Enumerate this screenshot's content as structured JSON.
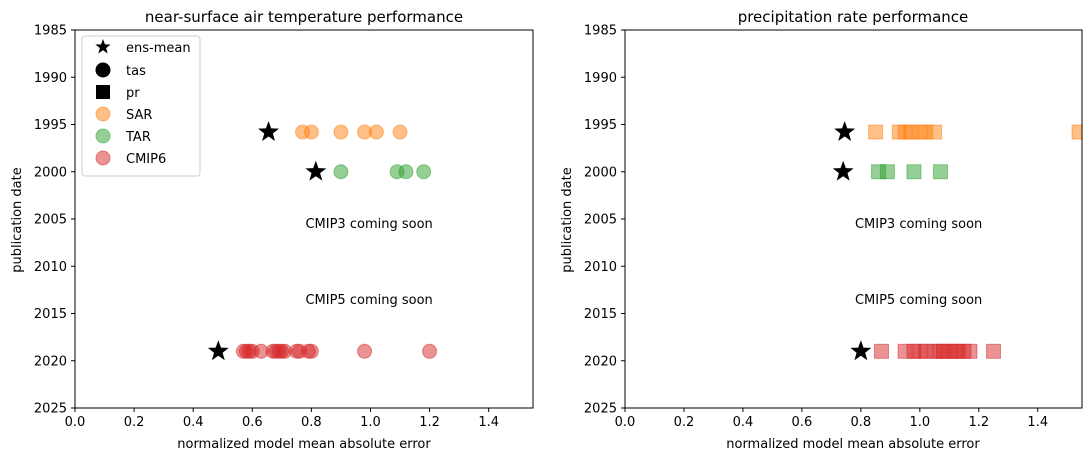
{
  "colors": {
    "SAR": "#ff7f0e",
    "TAR": "#2ca02c",
    "CMIP6": "#d62728",
    "ens_mean": "#000000"
  },
  "chart_data": [
    {
      "type": "scatter",
      "title": "near-surface air temperature performance",
      "xlabel": "normalized model mean absolute error",
      "ylabel": "publication date",
      "xlim": [
        0,
        1.55
      ],
      "ylim": [
        2025,
        1985
      ],
      "x_ticks": [
        "0.0",
        "0.2",
        "0.4",
        "0.6",
        "0.8",
        "1.0",
        "1.2",
        "1.4"
      ],
      "y_ticks": [
        "1985",
        "1990",
        "1995",
        "2000",
        "2005",
        "2010",
        "2015",
        "2020",
        "2025"
      ],
      "marker": "circle",
      "legend": {
        "position": "top-left",
        "entries": [
          {
            "label": "ens-mean",
            "marker": "star",
            "color": "#000000"
          },
          {
            "label": "tas",
            "marker": "circle",
            "color": "#000000"
          },
          {
            "label": "pr",
            "marker": "square",
            "color": "#000000"
          },
          {
            "label": "SAR",
            "marker": "circle",
            "color": "#ff7f0e",
            "alpha": 0.5
          },
          {
            "label": "TAR",
            "marker": "circle",
            "color": "#2ca02c",
            "alpha": 0.5
          },
          {
            "label": "CMIP6",
            "marker": "circle",
            "color": "#d62728",
            "alpha": 0.5
          }
        ]
      },
      "series": [
        {
          "name": "SAR",
          "y": 1995.8,
          "x": [
            0.77,
            0.8,
            0.9,
            0.98,
            1.02,
            1.1
          ]
        },
        {
          "name": "TAR",
          "y": 2000.0,
          "x": [
            0.9,
            1.09,
            1.12,
            1.18
          ]
        },
        {
          "name": "CMIP6",
          "y": 2019.0,
          "x": [
            0.57,
            0.58,
            0.59,
            0.6,
            0.63,
            0.67,
            0.68,
            0.69,
            0.7,
            0.71,
            0.75,
            0.76,
            0.79,
            0.8,
            0.98,
            1.2
          ]
        }
      ],
      "ens_mean": [
        {
          "x": 0.655,
          "y": 1995.8
        },
        {
          "x": 0.815,
          "y": 2000.0
        },
        {
          "x": 0.485,
          "y": 2019.0
        }
      ],
      "annotations": [
        {
          "text": "CMIP3 coming soon",
          "x": 0.78,
          "y": 2005.5
        },
        {
          "text": "CMIP5 coming soon",
          "x": 0.78,
          "y": 2013.5
        }
      ]
    },
    {
      "type": "scatter",
      "title": "precipitation rate performance",
      "xlabel": "normalized model mean absolute error",
      "ylabel": "publication date",
      "xlim": [
        0,
        1.55
      ],
      "ylim": [
        2025,
        1985
      ],
      "x_ticks": [
        "0.0",
        "0.2",
        "0.4",
        "0.6",
        "0.8",
        "1.0",
        "1.2",
        "1.4"
      ],
      "y_ticks": [
        "1985",
        "1990",
        "1995",
        "2000",
        "2005",
        "2010",
        "2015",
        "2020",
        "2025"
      ],
      "marker": "square",
      "series": [
        {
          "name": "SAR",
          "y": 1995.8,
          "x": [
            0.85,
            0.93,
            0.95,
            0.97,
            1.0,
            1.02,
            1.05,
            1.54
          ]
        },
        {
          "name": "TAR",
          "y": 2000.0,
          "x": [
            0.86,
            0.89,
            0.98,
            1.07
          ]
        },
        {
          "name": "CMIP6",
          "y": 2019.0,
          "x": [
            0.87,
            0.95,
            0.98,
            1.0,
            1.02,
            1.05,
            1.07,
            1.08,
            1.1,
            1.12,
            1.13,
            1.15,
            1.17,
            1.25
          ]
        }
      ],
      "ens_mean": [
        {
          "x": 0.745,
          "y": 1995.8
        },
        {
          "x": 0.74,
          "y": 2000.0
        },
        {
          "x": 0.8,
          "y": 2019.0
        }
      ],
      "annotations": [
        {
          "text": "CMIP3 coming soon",
          "x": 0.78,
          "y": 2005.5
        },
        {
          "text": "CMIP5 coming soon",
          "x": 0.78,
          "y": 2013.5
        }
      ]
    }
  ]
}
